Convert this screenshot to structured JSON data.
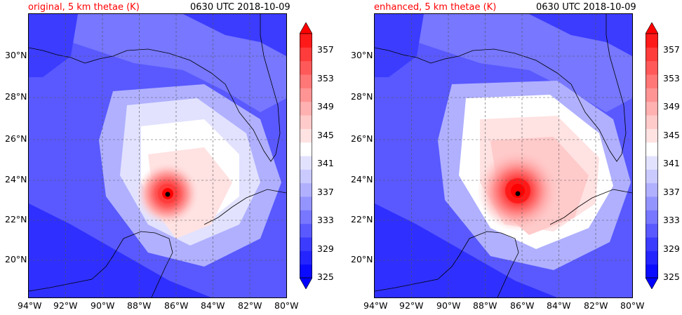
{
  "colors": {
    "levels": [
      "#0b0bff",
      "#2424ff",
      "#3c3cff",
      "#5959ff",
      "#7777ff",
      "#9494ff",
      "#b0b0ff",
      "#cacaff",
      "#e2e2ff",
      "#ffffff",
      "#ffe2e2",
      "#ffcaca",
      "#ffb0b0",
      "#ff9494",
      "#ff7777",
      "#ff5959",
      "#ff3c3c",
      "#ff1a1a"
    ],
    "land_line": "#000000",
    "grid": "#555555",
    "eye": "#000000"
  },
  "left": {
    "title": "original, 5 km thetae (K)",
    "time": "0630 UTC 2018-10-09"
  },
  "right": {
    "title": "enhanced, 5 km thetae (K)",
    "time": "0630 UTC 2018-10-09"
  },
  "lon_ticks": [
    "94°W",
    "92°W",
    "90°W",
    "88°W",
    "86°W",
    "84°W",
    "82°W",
    "80°W"
  ],
  "lat_ticks": [
    "30°N",
    "28°N",
    "26°N",
    "24°N",
    "22°N",
    "20°N"
  ],
  "colorbar_ticks": [
    "357",
    "353",
    "349",
    "345",
    "341",
    "337",
    "333",
    "329",
    "325"
  ]
}
